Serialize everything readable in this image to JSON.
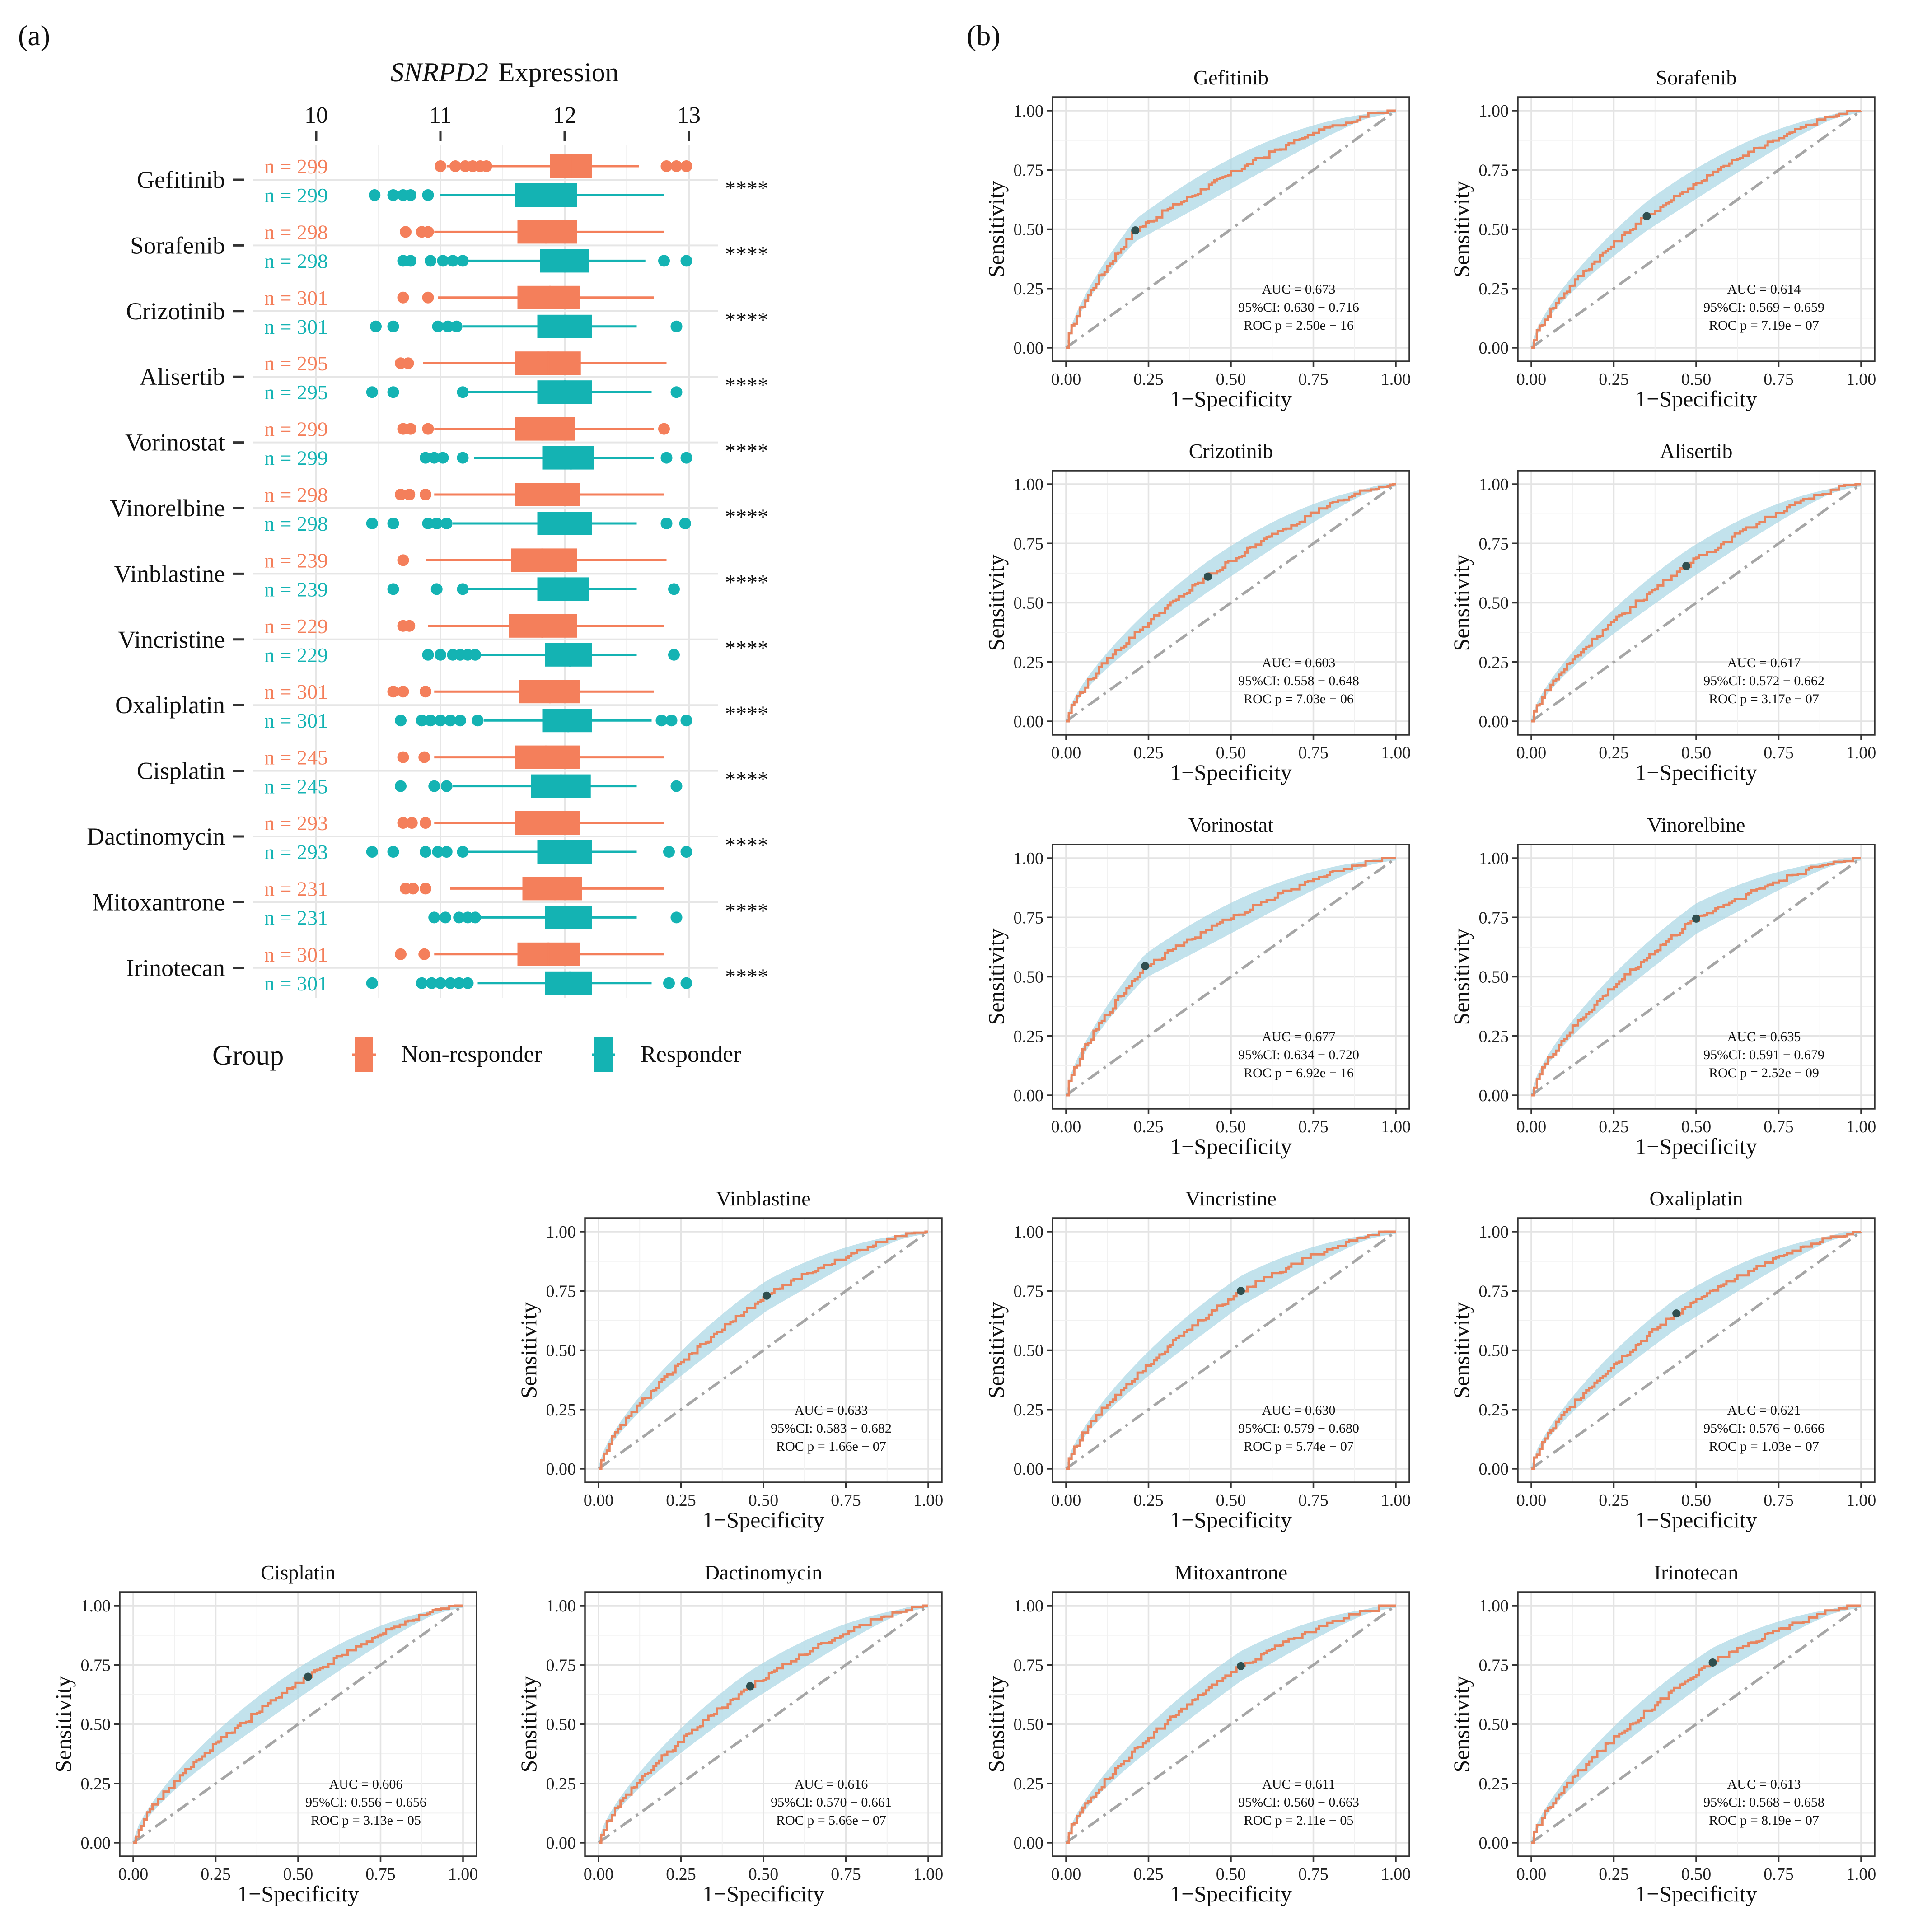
{
  "figure": {
    "panel_a_label": "(a)",
    "panel_b_label": "(b)"
  },
  "chart_data": [
    {
      "type": "boxplot",
      "panel": "(a)",
      "title_gene": "SNRPD2",
      "title_suffix": "Expression",
      "xticks": [
        "10",
        "11",
        "12",
        "13"
      ],
      "xlim": [
        9.5,
        13.2
      ],
      "significance": "****",
      "legend_title": "Group",
      "colors": {
        "non_responder": "#F47F5B",
        "responder": "#14B3B3"
      },
      "groups": [
        {
          "drug": "Gefitinib",
          "non_responder": {
            "n": "n = 299",
            "q1": 11.88,
            "med": 12.05,
            "q3": 12.22,
            "wl": 11.05,
            "wh": 12.6,
            "out": [
              11.0,
              11.12,
              11.2,
              11.26,
              11.32,
              11.37,
              12.82,
              12.9,
              12.98
            ]
          },
          "responder": {
            "n": "n = 299",
            "q1": 11.6,
            "med": 11.85,
            "q3": 12.1,
            "wl": 11.0,
            "wh": 12.8,
            "out": [
              10.47,
              10.62,
              10.7,
              10.76,
              10.9
            ]
          }
        },
        {
          "drug": "Sorafenib",
          "non_responder": {
            "n": "n = 298",
            "q1": 11.62,
            "med": 11.85,
            "q3": 12.1,
            "wl": 10.95,
            "wh": 12.8,
            "out": [
              10.72,
              10.85,
              10.9
            ]
          },
          "responder": {
            "n": "n = 298",
            "q1": 11.8,
            "med": 12.0,
            "q3": 12.2,
            "wl": 11.22,
            "wh": 12.65,
            "out": [
              10.7,
              10.76,
              10.92,
              11.02,
              11.1,
              11.18,
              12.8,
              12.98
            ]
          }
        },
        {
          "drug": "Crizotinib",
          "non_responder": {
            "n": "n = 301",
            "q1": 11.62,
            "med": 11.88,
            "q3": 12.12,
            "wl": 10.98,
            "wh": 12.72,
            "out": [
              10.7,
              10.9
            ]
          },
          "responder": {
            "n": "n = 301",
            "q1": 11.78,
            "med": 12.0,
            "q3": 12.22,
            "wl": 11.18,
            "wh": 12.58,
            "out": [
              10.48,
              10.62,
              10.98,
              11.06,
              11.13,
              12.9
            ]
          }
        },
        {
          "drug": "Alisertib",
          "non_responder": {
            "n": "n = 295",
            "q1": 11.6,
            "med": 11.87,
            "q3": 12.13,
            "wl": 10.86,
            "wh": 12.82,
            "out": [
              10.68,
              10.74
            ]
          },
          "responder": {
            "n": "n = 295",
            "q1": 11.78,
            "med": 12.0,
            "q3": 12.22,
            "wl": 11.2,
            "wh": 12.7,
            "out": [
              10.45,
              10.62,
              11.18,
              12.9
            ]
          }
        },
        {
          "drug": "Vorinostat",
          "non_responder": {
            "n": "n = 299",
            "q1": 11.6,
            "med": 11.82,
            "q3": 12.08,
            "wl": 10.95,
            "wh": 12.72,
            "out": [
              10.7,
              10.76,
              10.9,
              12.8
            ]
          },
          "responder": {
            "n": "n = 299",
            "q1": 11.82,
            "med": 12.05,
            "q3": 12.24,
            "wl": 11.27,
            "wh": 12.72,
            "out": [
              10.88,
              10.95,
              11.02,
              11.18,
              12.82,
              12.98
            ]
          }
        },
        {
          "drug": "Vinorelbine",
          "non_responder": {
            "n": "n = 298",
            "q1": 11.6,
            "med": 11.85,
            "q3": 12.12,
            "wl": 10.95,
            "wh": 12.8,
            "out": [
              10.68,
              10.75,
              10.88
            ]
          },
          "responder": {
            "n": "n = 298",
            "q1": 11.78,
            "med": 12.0,
            "q3": 12.22,
            "wl": 11.1,
            "wh": 12.58,
            "out": [
              10.45,
              10.62,
              10.9,
              10.97,
              11.05,
              12.82,
              12.97
            ]
          }
        },
        {
          "drug": "Vinblastine",
          "non_responder": {
            "n": "n = 239",
            "q1": 11.57,
            "med": 11.82,
            "q3": 12.1,
            "wl": 10.88,
            "wh": 12.82,
            "out": [
              10.7
            ]
          },
          "responder": {
            "n": "n = 239",
            "q1": 11.78,
            "med": 12.0,
            "q3": 12.2,
            "wl": 11.2,
            "wh": 12.58,
            "out": [
              10.62,
              10.97,
              11.18,
              12.88
            ]
          }
        },
        {
          "drug": "Vincristine",
          "non_responder": {
            "n": "n = 229",
            "q1": 11.55,
            "med": 11.82,
            "q3": 12.1,
            "wl": 10.9,
            "wh": 12.8,
            "out": [
              10.7,
              10.75
            ]
          },
          "responder": {
            "n": "n = 229",
            "q1": 11.84,
            "med": 12.04,
            "q3": 12.22,
            "wl": 11.3,
            "wh": 12.58,
            "out": [
              10.9,
              11.0,
              11.1,
              11.16,
              11.22,
              11.28,
              12.88
            ]
          }
        },
        {
          "drug": "Oxaliplatin",
          "non_responder": {
            "n": "n = 301",
            "q1": 11.63,
            "med": 11.88,
            "q3": 12.12,
            "wl": 10.95,
            "wh": 12.72,
            "out": [
              10.62,
              10.7,
              10.88
            ]
          },
          "responder": {
            "n": "n = 301",
            "q1": 11.82,
            "med": 12.03,
            "q3": 12.22,
            "wl": 11.35,
            "wh": 12.7,
            "out": [
              10.68,
              10.85,
              10.92,
              11.0,
              11.08,
              11.16,
              11.3,
              12.78,
              12.86,
              12.98
            ]
          }
        },
        {
          "drug": "Cisplatin",
          "non_responder": {
            "n": "n = 245",
            "q1": 11.6,
            "med": 11.85,
            "q3": 12.12,
            "wl": 10.95,
            "wh": 12.8,
            "out": [
              10.7,
              10.87
            ]
          },
          "responder": {
            "n": "n = 245",
            "q1": 11.73,
            "med": 11.97,
            "q3": 12.21,
            "wl": 11.1,
            "wh": 12.58,
            "out": [
              10.68,
              10.95,
              11.05,
              12.9
            ]
          }
        },
        {
          "drug": "Dactinomycin",
          "non_responder": {
            "n": "n = 293",
            "q1": 11.6,
            "med": 11.85,
            "q3": 12.12,
            "wl": 10.95,
            "wh": 12.8,
            "out": [
              10.7,
              10.77,
              10.88
            ]
          },
          "responder": {
            "n": "n = 293",
            "q1": 11.78,
            "med": 12.0,
            "q3": 12.22,
            "wl": 11.2,
            "wh": 12.58,
            "out": [
              10.45,
              10.62,
              10.88,
              10.98,
              11.05,
              11.18,
              12.84,
              12.98
            ]
          }
        },
        {
          "drug": "Mitoxantrone",
          "non_responder": {
            "n": "n = 231",
            "q1": 11.66,
            "med": 11.92,
            "q3": 12.14,
            "wl": 11.08,
            "wh": 12.8,
            "out": [
              10.72,
              10.78,
              10.88
            ]
          },
          "responder": {
            "n": "n = 231",
            "q1": 11.84,
            "med": 12.04,
            "q3": 12.22,
            "wl": 11.3,
            "wh": 12.58,
            "out": [
              10.95,
              11.04,
              11.15,
              11.22,
              11.28,
              12.9
            ]
          }
        },
        {
          "drug": "Irinotecan",
          "non_responder": {
            "n": "n = 301",
            "q1": 11.62,
            "med": 11.87,
            "q3": 12.12,
            "wl": 10.95,
            "wh": 12.8,
            "out": [
              10.68,
              10.87
            ]
          },
          "responder": {
            "n": "n = 301",
            "q1": 11.84,
            "med": 12.04,
            "q3": 12.22,
            "wl": 11.3,
            "wh": 12.7,
            "out": [
              10.45,
              10.85,
              10.93,
              11.0,
              11.08,
              11.15,
              11.22,
              12.84,
              12.98
            ]
          }
        }
      ]
    },
    {
      "type": "roc",
      "panel": "(b)",
      "xlabel": "1−Specificity",
      "ylabel": "Sensitivity",
      "xlim": [
        0,
        1
      ],
      "ylim": [
        0,
        1
      ],
      "ticks": [
        "0.00",
        "0.25",
        "0.50",
        "0.75",
        "1.00"
      ],
      "colors": {
        "curve": "#E8855F",
        "band": "#ADD8E6",
        "diagonal": "#A6A6A6",
        "cutoff_point": "#2F4F4F"
      },
      "panels": [
        {
          "title": "Gefitinib",
          "auc": "AUC =  0.673",
          "ci": "95%CI:  0.630 − 0.716",
          "roc": "ROC p = 2.50e − 16",
          "cut": [
            0.21,
            0.495
          ]
        },
        {
          "title": "Sorafenib",
          "auc": "AUC =  0.614",
          "ci": "95%CI:  0.569 − 0.659",
          "roc": "ROC p = 7.19e − 07",
          "cut": [
            0.35,
            0.555
          ]
        },
        {
          "title": "Crizotinib",
          "auc": "AUC =  0.603",
          "ci": "95%CI:  0.558 − 0.648",
          "roc": "ROC p = 7.03e − 06",
          "cut": [
            0.43,
            0.61
          ]
        },
        {
          "title": "Alisertib",
          "auc": "AUC =  0.617",
          "ci": "95%CI:  0.572 − 0.662",
          "roc": "ROC p = 3.17e − 07",
          "cut": [
            0.47,
            0.655
          ]
        },
        {
          "title": "Vorinostat",
          "auc": "AUC =  0.677",
          "ci": "95%CI:  0.634 − 0.720",
          "roc": "ROC p = 6.92e − 16",
          "cut": [
            0.24,
            0.545
          ]
        },
        {
          "title": "Vinorelbine",
          "auc": "AUC =  0.635",
          "ci": "95%CI:  0.591 − 0.679",
          "roc": "ROC p = 2.52e − 09",
          "cut": [
            0.5,
            0.745
          ]
        },
        {
          "title": "Vinblastine",
          "auc": "AUC =  0.633",
          "ci": "95%CI:  0.583 − 0.682",
          "roc": "ROC p = 1.66e − 07",
          "cut": [
            0.51,
            0.73
          ]
        },
        {
          "title": "Vincristine",
          "auc": "AUC =  0.630",
          "ci": "95%CI:  0.579 − 0.680",
          "roc": "ROC p = 5.74e − 07",
          "cut": [
            0.53,
            0.75
          ]
        },
        {
          "title": "Oxaliplatin",
          "auc": "AUC =  0.621",
          "ci": "95%CI:  0.576 − 0.666",
          "roc": "ROC p = 1.03e − 07",
          "cut": [
            0.44,
            0.655
          ]
        },
        {
          "title": "Cisplatin",
          "auc": "AUC =  0.606",
          "ci": "95%CI:  0.556 − 0.656",
          "roc": "ROC p = 3.13e − 05",
          "cut": [
            0.53,
            0.7
          ]
        },
        {
          "title": "Dactinomycin",
          "auc": "AUC =  0.616",
          "ci": "95%CI:  0.570 − 0.661",
          "roc": "ROC p = 5.66e − 07",
          "cut": [
            0.46,
            0.66
          ]
        },
        {
          "title": "Mitoxantrone",
          "auc": "AUC =  0.611",
          "ci": "95%CI:  0.560 − 0.663",
          "roc": "ROC p = 2.11e − 05",
          "cut": [
            0.53,
            0.745
          ]
        },
        {
          "title": "Irinotecan",
          "auc": "AUC =  0.613",
          "ci": "95%CI:  0.568 − 0.658",
          "roc": "ROC p = 8.19e − 07",
          "cut": [
            0.55,
            0.76
          ]
        }
      ]
    }
  ]
}
